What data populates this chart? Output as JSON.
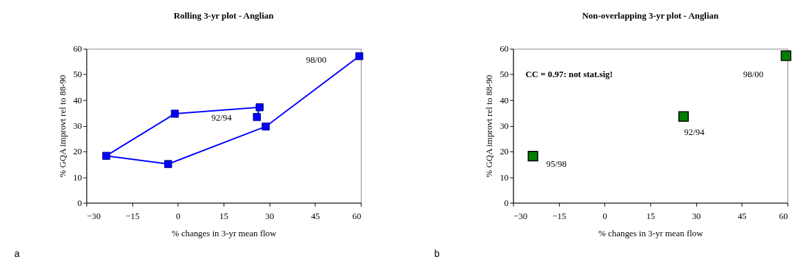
{
  "chart_data": [
    {
      "type": "line",
      "title": "Rolling 3-yr plot - Anglian",
      "xlabel": "% changes in 3-yr mean flow",
      "ylabel": "% GQA improvt rel to 88-90",
      "x": [
        25.9,
        26.8,
        -1.0,
        -23.5,
        -3.2,
        28.8,
        59.5
      ],
      "series": [
        {
          "color": "#0000ff",
          "values": [
            33.4,
            37.2,
            34.7,
            18.3,
            15.1,
            29.7,
            57.1
          ]
        }
      ],
      "marker": "square",
      "xlim": [
        -30,
        60
      ],
      "xticks": [
        -30,
        -15,
        0,
        15,
        30,
        45,
        60
      ],
      "ylim": [
        0,
        60
      ],
      "yticks": [
        0,
        10,
        20,
        30,
        40,
        50,
        60
      ],
      "grid": false,
      "annotations": [
        "98/00",
        "92/94",
        "a"
      ]
    },
    {
      "type": "scatter",
      "title": "Non-overlapping 3-yr plot - Anglian",
      "xlabel": "% changes in 3-yr mean flow",
      "ylabel": "% GQA improvt rel to 88-90",
      "x": [
        -23.5,
        25.9,
        59.5
      ],
      "series": [
        {
          "color": "#008000",
          "values": [
            18.2,
            33.6,
            57.3
          ]
        }
      ],
      "marker": "square",
      "xlim": [
        -30,
        60
      ],
      "xticks": [
        -30,
        -15,
        0,
        15,
        30,
        45,
        60
      ],
      "ylim": [
        0,
        60
      ],
      "yticks": [
        0,
        10,
        20,
        30,
        40,
        50,
        60
      ],
      "grid": false,
      "annotations": [
        "98/00",
        "92/94",
        "95/98",
        "CC = 0.97:  not stat.sig!",
        "b"
      ]
    }
  ]
}
